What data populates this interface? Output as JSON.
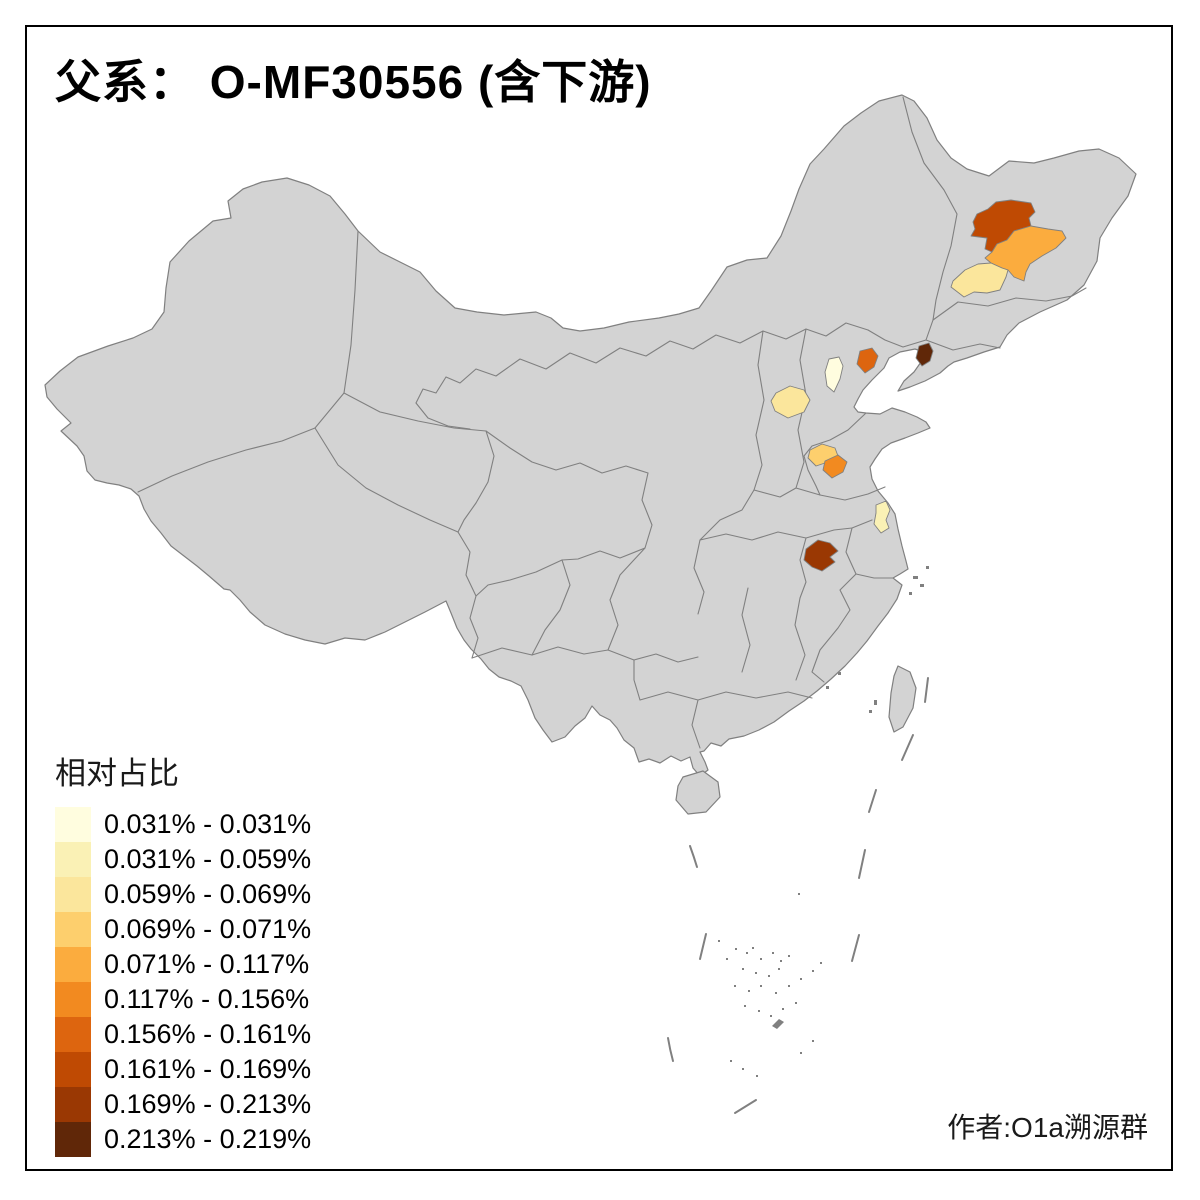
{
  "title": "父系： O-MF30556 (含下游)",
  "attribution": "作者:O1a溯源群",
  "frame": {
    "border_color": "#000000"
  },
  "legend": {
    "title": "相对占比",
    "classes": [
      {
        "label": "0.031% - 0.031%",
        "color": "#FFFDDF"
      },
      {
        "label": "0.031% - 0.059%",
        "color": "#FAF1B5"
      },
      {
        "label": "0.059% - 0.069%",
        "color": "#FBE69C"
      },
      {
        "label": "0.069% - 0.071%",
        "color": "#FDCF6D"
      },
      {
        "label": "0.071% - 0.117%",
        "color": "#FBAC3E"
      },
      {
        "label": "0.117% - 0.156%",
        "color": "#F28A20"
      },
      {
        "label": "0.156% - 0.161%",
        "color": "#DD650F"
      },
      {
        "label": "0.161% - 0.169%",
        "color": "#BF4A03"
      },
      {
        "label": "0.169% - 0.213%",
        "color": "#9A3803"
      },
      {
        "label": "0.213% - 0.219%",
        "color": "#602708"
      }
    ]
  },
  "map": {
    "land_fill": "#D3D3D3",
    "boundary_color": "#808080",
    "sea_color": "#FFFFFF",
    "regions": [
      {
        "id": "ne-upper-dark-orange",
        "location": "northeast, upper prefecture",
        "class_index": 8,
        "value_range": "0.161% - 0.169%"
      },
      {
        "id": "ne-central-orange",
        "location": "northeast, central prefecture",
        "class_index": 5,
        "value_range": "0.071% - 0.117%"
      },
      {
        "id": "ne-west-pale-yellow",
        "location": "northeast, southwest prefecture",
        "class_index": 3,
        "value_range": "0.059% - 0.069%"
      },
      {
        "id": "liaodong-dark-brown",
        "location": "south Liaoning coast prefecture",
        "class_index": 10,
        "value_range": "0.213% - 0.219%"
      },
      {
        "id": "bohai-north-orange",
        "location": "north Bohai coast prefecture",
        "class_index": 7,
        "value_range": "0.156% - 0.161%"
      },
      {
        "id": "beijing-area-cream",
        "location": "Beijing area",
        "class_index": 1,
        "value_range": "0.031% - 0.031%"
      },
      {
        "id": "hebei-light-yellow",
        "location": "central Hebei prefecture",
        "class_index": 3,
        "value_range": "0.059% - 0.069%"
      },
      {
        "id": "shandong-nw-yellow",
        "location": "northwest Shandong prefecture",
        "class_index": 4,
        "value_range": "0.069% - 0.071%"
      },
      {
        "id": "shandong-center-orange",
        "location": "central Shandong prefecture",
        "class_index": 6,
        "value_range": "0.117% - 0.156%"
      },
      {
        "id": "jiangsu-pale-yellow",
        "location": "central Jiangsu prefecture",
        "class_index": 2,
        "value_range": "0.031% - 0.059%"
      },
      {
        "id": "central-east-dark-red",
        "location": "middle Yangtze prefecture",
        "class_index": 9,
        "value_range": "0.169% - 0.213%"
      }
    ]
  },
  "chart_data": {
    "type": "choropleth",
    "title": "父系： O-MF30556 (含下游)",
    "legend_title": "相对占比",
    "bins": [
      "0.031% - 0.031%",
      "0.031% - 0.059%",
      "0.059% - 0.069%",
      "0.069% - 0.071%",
      "0.071% - 0.117%",
      "0.117% - 0.156%",
      "0.156% - 0.161%",
      "0.161% - 0.169%",
      "0.169% - 0.213%",
      "0.213% - 0.219%"
    ],
    "bin_colors": [
      "#FFFDDF",
      "#FAF1B5",
      "#FBE69C",
      "#FDCF6D",
      "#FBAC3E",
      "#F28A20",
      "#DD650F",
      "#BF4A03",
      "#9A3803",
      "#602708"
    ],
    "shaded_regions": [
      {
        "region": "ne-upper-dark-orange",
        "bin": "0.161% - 0.169%"
      },
      {
        "region": "ne-central-orange",
        "bin": "0.071% - 0.117%"
      },
      {
        "region": "ne-west-pale-yellow",
        "bin": "0.059% - 0.069%"
      },
      {
        "region": "liaodong-dark-brown",
        "bin": "0.213% - 0.219%"
      },
      {
        "region": "bohai-north-orange",
        "bin": "0.156% - 0.161%"
      },
      {
        "region": "beijing-area-cream",
        "bin": "0.031% - 0.031%"
      },
      {
        "region": "hebei-light-yellow",
        "bin": "0.059% - 0.069%"
      },
      {
        "region": "shandong-nw-yellow",
        "bin": "0.069% - 0.071%"
      },
      {
        "region": "shandong-center-orange",
        "bin": "0.117% - 0.156%"
      },
      {
        "region": "jiangsu-pale-yellow",
        "bin": "0.031% - 0.059%"
      },
      {
        "region": "central-east-dark-red",
        "bin": "0.169% - 0.213%"
      }
    ],
    "unshaded_fill": "#D3D3D3"
  }
}
